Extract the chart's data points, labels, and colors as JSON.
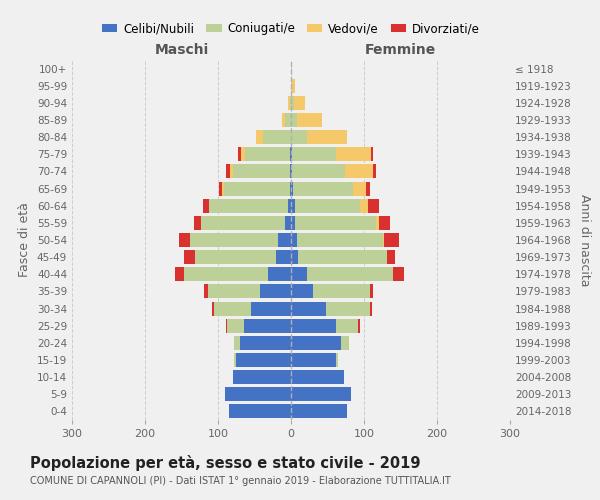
{
  "age_groups": [
    "0-4",
    "5-9",
    "10-14",
    "15-19",
    "20-24",
    "25-29",
    "30-34",
    "35-39",
    "40-44",
    "45-49",
    "50-54",
    "55-59",
    "60-64",
    "65-69",
    "70-74",
    "75-79",
    "80-84",
    "85-89",
    "90-94",
    "95-99",
    "100+"
  ],
  "birth_years": [
    "2014-2018",
    "2009-2013",
    "2004-2008",
    "1999-2003",
    "1994-1998",
    "1989-1993",
    "1984-1988",
    "1979-1983",
    "1974-1978",
    "1969-1973",
    "1964-1968",
    "1959-1963",
    "1954-1958",
    "1949-1953",
    "1944-1948",
    "1939-1943",
    "1934-1938",
    "1929-1933",
    "1924-1928",
    "1919-1923",
    "≤ 1918"
  ],
  "male_celibi": [
    85,
    90,
    80,
    75,
    70,
    65,
    55,
    42,
    32,
    20,
    18,
    8,
    4,
    2,
    2,
    1,
    0,
    0,
    0,
    0,
    0
  ],
  "male_coniugati": [
    0,
    0,
    0,
    3,
    8,
    22,
    50,
    72,
    115,
    112,
    120,
    115,
    108,
    90,
    78,
    62,
    38,
    8,
    2,
    0,
    0
  ],
  "male_vedovi": [
    0,
    0,
    0,
    0,
    0,
    0,
    0,
    0,
    0,
    0,
    0,
    0,
    0,
    2,
    4,
    6,
    10,
    5,
    2,
    0,
    0
  ],
  "male_divorziati": [
    0,
    0,
    0,
    0,
    0,
    2,
    3,
    5,
    12,
    15,
    15,
    10,
    8,
    5,
    5,
    3,
    0,
    0,
    0,
    0,
    0
  ],
  "female_nubili": [
    77,
    82,
    72,
    62,
    68,
    62,
    48,
    30,
    22,
    10,
    8,
    5,
    5,
    3,
    2,
    2,
    0,
    0,
    0,
    0,
    0
  ],
  "female_coniugate": [
    0,
    0,
    0,
    3,
    12,
    30,
    60,
    78,
    118,
    122,
    118,
    112,
    90,
    82,
    72,
    60,
    22,
    8,
    4,
    0,
    0
  ],
  "female_vedove": [
    0,
    0,
    0,
    0,
    0,
    0,
    0,
    0,
    0,
    0,
    2,
    4,
    10,
    18,
    38,
    48,
    55,
    35,
    15,
    5,
    0
  ],
  "female_divorziate": [
    0,
    0,
    0,
    0,
    0,
    2,
    3,
    5,
    15,
    10,
    20,
    15,
    15,
    5,
    5,
    3,
    0,
    0,
    0,
    0,
    0
  ],
  "color_celibi": "#4472c4",
  "color_coniugati": "#bdd097",
  "color_vedovi": "#f5c86a",
  "color_divorziati": "#d93030",
  "title": "Popolazione per età, sesso e stato civile - 2019",
  "subtitle": "COMUNE DI CAPANNOLI (PI) - Dati ISTAT 1° gennaio 2019 - Elaborazione TUTTITALIA.IT",
  "label_maschi": "Maschi",
  "label_femmine": "Femmine",
  "label_y_left": "Fasce di età",
  "label_y_right": "Anni di nascita",
  "legend_labels": [
    "Celibi/Nubili",
    "Coniugati/e",
    "Vedovi/e",
    "Divorziati/e"
  ],
  "xlim": 300,
  "bg_color": "#f0f0f0"
}
